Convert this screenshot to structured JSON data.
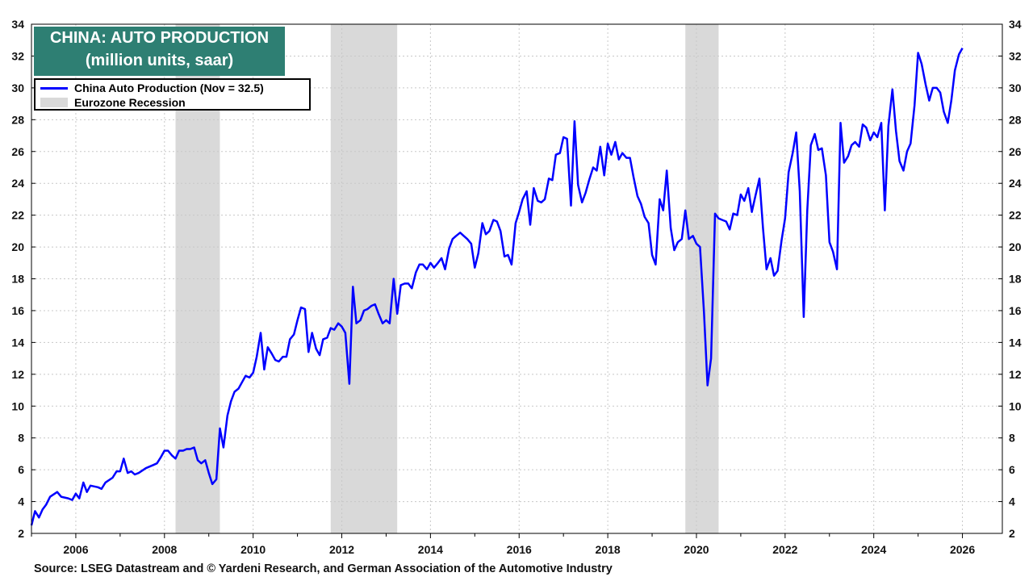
{
  "title": {
    "line1": "CHINA: AUTO PRODUCTION",
    "line2": "(million units, saar)"
  },
  "legend": {
    "series_label": "China Auto Production (Nov = 32.5)",
    "recession_label": "Eurozone Recession"
  },
  "source": "Source: LSEG Datastream and © Yardeni Research, and German Association of the Automotive Industry",
  "colors": {
    "line": "#0000ff",
    "recession": "#d9d9d9",
    "title_bg": "#2e7f73",
    "grid": "#c8c8c8"
  },
  "chart_data": {
    "type": "line",
    "title": "CHINA: AUTO PRODUCTION",
    "subtitle": "(million units, saar)",
    "xlim": [
      2005.0,
      2026.9
    ],
    "ylim": [
      2,
      34
    ],
    "y_ticks": [
      2,
      4,
      6,
      8,
      10,
      12,
      14,
      16,
      18,
      20,
      22,
      24,
      26,
      28,
      30,
      32,
      34
    ],
    "x_ticks": [
      2006,
      2008,
      2010,
      2012,
      2014,
      2016,
      2018,
      2020,
      2022,
      2024,
      2026
    ],
    "grid": true,
    "legend_position": "top-left",
    "recessions": [
      {
        "start": 2008.25,
        "end": 2009.25
      },
      {
        "start": 2011.75,
        "end": 2013.25
      },
      {
        "start": 2019.75,
        "end": 2020.5
      }
    ],
    "series": [
      {
        "name": "China Auto Production (Nov = 32.5)",
        "points": [
          [
            2005.0,
            2.5
          ],
          [
            2005.08,
            3.4
          ],
          [
            2005.17,
            3.0
          ],
          [
            2005.25,
            3.5
          ],
          [
            2005.33,
            3.8
          ],
          [
            2005.42,
            4.3
          ],
          [
            2005.58,
            4.6
          ],
          [
            2005.67,
            4.3
          ],
          [
            2005.83,
            4.2
          ],
          [
            2005.92,
            4.1
          ],
          [
            2006.0,
            4.5
          ],
          [
            2006.08,
            4.2
          ],
          [
            2006.17,
            5.2
          ],
          [
            2006.25,
            4.6
          ],
          [
            2006.33,
            5.0
          ],
          [
            2006.5,
            4.9
          ],
          [
            2006.58,
            4.8
          ],
          [
            2006.67,
            5.2
          ],
          [
            2006.83,
            5.5
          ],
          [
            2006.92,
            5.9
          ],
          [
            2007.0,
            5.9
          ],
          [
            2007.08,
            6.7
          ],
          [
            2007.17,
            5.8
          ],
          [
            2007.25,
            5.9
          ],
          [
            2007.33,
            5.7
          ],
          [
            2007.42,
            5.8
          ],
          [
            2007.58,
            6.1
          ],
          [
            2007.75,
            6.3
          ],
          [
            2007.83,
            6.4
          ],
          [
            2007.92,
            6.8
          ],
          [
            2008.0,
            7.2
          ],
          [
            2008.08,
            7.2
          ],
          [
            2008.17,
            6.9
          ],
          [
            2008.25,
            6.7
          ],
          [
            2008.33,
            7.2
          ],
          [
            2008.42,
            7.2
          ],
          [
            2008.5,
            7.3
          ],
          [
            2008.58,
            7.3
          ],
          [
            2008.67,
            7.4
          ],
          [
            2008.75,
            6.6
          ],
          [
            2008.83,
            6.4
          ],
          [
            2008.92,
            6.6
          ],
          [
            2009.0,
            5.8
          ],
          [
            2009.08,
            5.1
          ],
          [
            2009.17,
            5.4
          ],
          [
            2009.25,
            8.6
          ],
          [
            2009.33,
            7.4
          ],
          [
            2009.42,
            9.4
          ],
          [
            2009.5,
            10.3
          ],
          [
            2009.58,
            10.9
          ],
          [
            2009.67,
            11.1
          ],
          [
            2009.75,
            11.5
          ],
          [
            2009.83,
            11.9
          ],
          [
            2009.92,
            11.8
          ],
          [
            2010.0,
            12.1
          ],
          [
            2010.08,
            13.1
          ],
          [
            2010.17,
            14.6
          ],
          [
            2010.25,
            12.3
          ],
          [
            2010.33,
            13.7
          ],
          [
            2010.42,
            13.3
          ],
          [
            2010.5,
            12.9
          ],
          [
            2010.58,
            12.8
          ],
          [
            2010.67,
            13.1
          ],
          [
            2010.75,
            13.1
          ],
          [
            2010.83,
            14.2
          ],
          [
            2010.92,
            14.5
          ],
          [
            2011.0,
            15.4
          ],
          [
            2011.08,
            16.2
          ],
          [
            2011.17,
            16.1
          ],
          [
            2011.25,
            13.4
          ],
          [
            2011.33,
            14.6
          ],
          [
            2011.42,
            13.6
          ],
          [
            2011.5,
            13.2
          ],
          [
            2011.58,
            14.2
          ],
          [
            2011.67,
            14.3
          ],
          [
            2011.75,
            14.9
          ],
          [
            2011.83,
            14.8
          ],
          [
            2011.92,
            15.2
          ],
          [
            2012.0,
            15.0
          ],
          [
            2012.08,
            14.6
          ],
          [
            2012.17,
            11.4
          ],
          [
            2012.25,
            17.5
          ],
          [
            2012.33,
            15.2
          ],
          [
            2012.42,
            15.4
          ],
          [
            2012.5,
            16.0
          ],
          [
            2012.58,
            16.1
          ],
          [
            2012.67,
            16.3
          ],
          [
            2012.75,
            16.4
          ],
          [
            2012.83,
            15.8
          ],
          [
            2012.92,
            15.2
          ],
          [
            2013.0,
            15.4
          ],
          [
            2013.08,
            15.2
          ],
          [
            2013.17,
            18.0
          ],
          [
            2013.25,
            15.8
          ],
          [
            2013.33,
            17.6
          ],
          [
            2013.42,
            17.7
          ],
          [
            2013.5,
            17.7
          ],
          [
            2013.58,
            17.4
          ],
          [
            2013.67,
            18.4
          ],
          [
            2013.75,
            18.9
          ],
          [
            2013.83,
            18.9
          ],
          [
            2013.92,
            18.6
          ],
          [
            2014.0,
            19.0
          ],
          [
            2014.08,
            18.7
          ],
          [
            2014.17,
            19.0
          ],
          [
            2014.25,
            19.3
          ],
          [
            2014.33,
            18.6
          ],
          [
            2014.42,
            19.9
          ],
          [
            2014.5,
            20.5
          ],
          [
            2014.58,
            20.7
          ],
          [
            2014.67,
            20.9
          ],
          [
            2014.75,
            20.7
          ],
          [
            2014.83,
            20.5
          ],
          [
            2014.92,
            20.2
          ],
          [
            2015.0,
            18.7
          ],
          [
            2015.08,
            19.6
          ],
          [
            2015.17,
            21.5
          ],
          [
            2015.25,
            20.8
          ],
          [
            2015.33,
            21.0
          ],
          [
            2015.42,
            21.7
          ],
          [
            2015.5,
            21.6
          ],
          [
            2015.58,
            21.0
          ],
          [
            2015.67,
            19.4
          ],
          [
            2015.75,
            19.5
          ],
          [
            2015.83,
            18.9
          ],
          [
            2015.92,
            21.5
          ],
          [
            2016.0,
            22.2
          ],
          [
            2016.08,
            23.0
          ],
          [
            2016.17,
            23.5
          ],
          [
            2016.25,
            21.4
          ],
          [
            2016.33,
            23.7
          ],
          [
            2016.42,
            22.9
          ],
          [
            2016.5,
            22.8
          ],
          [
            2016.58,
            23.0
          ],
          [
            2016.67,
            24.3
          ],
          [
            2016.75,
            24.2
          ],
          [
            2016.83,
            25.8
          ],
          [
            2016.92,
            25.9
          ],
          [
            2017.0,
            26.9
          ],
          [
            2017.08,
            26.8
          ],
          [
            2017.17,
            22.6
          ],
          [
            2017.25,
            27.9
          ],
          [
            2017.33,
            23.9
          ],
          [
            2017.42,
            22.8
          ],
          [
            2017.5,
            23.4
          ],
          [
            2017.58,
            24.2
          ],
          [
            2017.67,
            25.0
          ],
          [
            2017.75,
            24.8
          ],
          [
            2017.83,
            26.3
          ],
          [
            2017.92,
            24.5
          ],
          [
            2018.0,
            26.5
          ],
          [
            2018.08,
            25.8
          ],
          [
            2018.17,
            26.6
          ],
          [
            2018.25,
            25.5
          ],
          [
            2018.33,
            25.9
          ],
          [
            2018.42,
            25.6
          ],
          [
            2018.5,
            25.6
          ],
          [
            2018.58,
            24.4
          ],
          [
            2018.67,
            23.2
          ],
          [
            2018.75,
            22.7
          ],
          [
            2018.83,
            21.9
          ],
          [
            2018.92,
            21.5
          ],
          [
            2019.0,
            19.5
          ],
          [
            2019.08,
            18.9
          ],
          [
            2019.17,
            23.0
          ],
          [
            2019.25,
            22.3
          ],
          [
            2019.33,
            24.8
          ],
          [
            2019.42,
            21.2
          ],
          [
            2019.5,
            19.8
          ],
          [
            2019.58,
            20.3
          ],
          [
            2019.67,
            20.5
          ],
          [
            2019.75,
            22.3
          ],
          [
            2019.83,
            20.5
          ],
          [
            2019.92,
            20.7
          ],
          [
            2020.0,
            20.2
          ],
          [
            2020.08,
            20.0
          ],
          [
            2020.17,
            15.9
          ],
          [
            2020.25,
            11.3
          ],
          [
            2020.33,
            13.0
          ],
          [
            2020.42,
            22.1
          ],
          [
            2020.5,
            21.8
          ],
          [
            2020.58,
            21.7
          ],
          [
            2020.67,
            21.6
          ],
          [
            2020.75,
            21.1
          ],
          [
            2020.83,
            22.1
          ],
          [
            2020.92,
            22.0
          ],
          [
            2021.0,
            23.3
          ],
          [
            2021.08,
            22.9
          ],
          [
            2021.17,
            23.7
          ],
          [
            2021.25,
            22.2
          ],
          [
            2021.33,
            23.2
          ],
          [
            2021.42,
            24.3
          ],
          [
            2021.5,
            21.2
          ],
          [
            2021.58,
            18.6
          ],
          [
            2021.67,
            19.3
          ],
          [
            2021.75,
            18.2
          ],
          [
            2021.83,
            18.5
          ],
          [
            2021.92,
            20.4
          ],
          [
            2022.0,
            21.8
          ],
          [
            2022.08,
            24.7
          ],
          [
            2022.17,
            25.9
          ],
          [
            2022.25,
            27.2
          ],
          [
            2022.33,
            23.5
          ],
          [
            2022.42,
            15.6
          ],
          [
            2022.5,
            22.3
          ],
          [
            2022.58,
            26.4
          ],
          [
            2022.67,
            27.1
          ],
          [
            2022.75,
            26.1
          ],
          [
            2022.83,
            26.2
          ],
          [
            2022.92,
            24.5
          ],
          [
            2023.0,
            20.3
          ],
          [
            2023.08,
            19.7
          ],
          [
            2023.17,
            18.6
          ],
          [
            2023.25,
            27.8
          ],
          [
            2023.33,
            25.3
          ],
          [
            2023.42,
            25.7
          ],
          [
            2023.5,
            26.4
          ],
          [
            2023.58,
            26.6
          ],
          [
            2023.67,
            26.3
          ],
          [
            2023.75,
            27.7
          ],
          [
            2023.83,
            27.5
          ],
          [
            2023.92,
            26.7
          ],
          [
            2024.0,
            27.2
          ],
          [
            2024.08,
            26.9
          ],
          [
            2024.17,
            27.8
          ],
          [
            2024.25,
            22.3
          ],
          [
            2024.33,
            27.6
          ],
          [
            2024.42,
            29.9
          ],
          [
            2024.5,
            27.3
          ],
          [
            2024.58,
            25.4
          ],
          [
            2024.67,
            24.8
          ],
          [
            2024.75,
            26.0
          ],
          [
            2024.83,
            26.5
          ],
          [
            2024.92,
            28.9
          ],
          [
            2025.0,
            32.2
          ],
          [
            2025.08,
            31.5
          ],
          [
            2025.17,
            30.2
          ],
          [
            2025.25,
            29.2
          ],
          [
            2025.33,
            30.0
          ],
          [
            2025.42,
            30.0
          ],
          [
            2025.5,
            29.7
          ],
          [
            2025.58,
            28.5
          ],
          [
            2025.67,
            27.8
          ],
          [
            2025.75,
            29.2
          ],
          [
            2025.83,
            31.1
          ],
          [
            2025.92,
            32.1
          ],
          [
            2026.0,
            32.5
          ]
        ]
      }
    ]
  }
}
